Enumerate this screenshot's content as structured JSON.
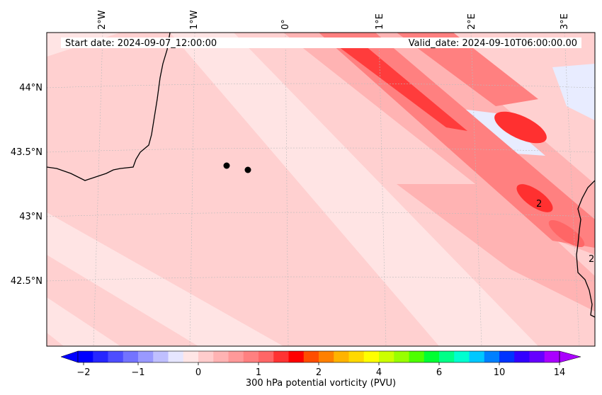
{
  "map": {
    "header": {
      "start_date": "Start date: 2024-09-07_12:00:00",
      "valid_date": "Valid_date: 2024-09-10T06:00:00.00"
    },
    "lon_labels": [
      "2°W",
      "1°W",
      "0°",
      "1°E",
      "2°E",
      "3°E"
    ],
    "lat_labels": [
      "44°N",
      "43.5°N",
      "43°N",
      "42.5°N"
    ],
    "markers": [
      {
        "lon": -0.82,
        "lat": 43.38
      },
      {
        "lon": -0.6,
        "lat": 43.35
      }
    ],
    "contour_labels": [
      "2",
      "2"
    ],
    "colors": {
      "pale": "#ffe4e4",
      "light": "#ffd0d0",
      "medium": "#ffb3b3",
      "strong": "#ff8080",
      "intense": "#ff3030",
      "negative": "#e8ecff"
    }
  },
  "colorbar": {
    "label": "300 hPa potential vorticity (PVU)",
    "tick_labels": [
      "-2",
      "-1",
      "0",
      "1",
      "2",
      "4",
      "6",
      "10",
      "14"
    ],
    "bins": [
      "#0000ff",
      "#2626ff",
      "#4d4dff",
      "#7373ff",
      "#9999ff",
      "#bfbfff",
      "#e6e6ff",
      "#ffe6e6",
      "#ffcccc",
      "#ffb3b3",
      "#ff9999",
      "#ff8080",
      "#ff6666",
      "#ff3333",
      "#ff0000",
      "#ff4d00",
      "#ff8000",
      "#ffb300",
      "#ffd900",
      "#ffff00",
      "#ccff00",
      "#99ff00",
      "#4dff00",
      "#00ff33",
      "#00ff88",
      "#00ffd0",
      "#00c8ff",
      "#0080ff",
      "#0033ff",
      "#3300ff",
      "#6600ff",
      "#aa00ff"
    ],
    "extend_low": "#0000ff",
    "extend_high": "#aa00ff"
  }
}
